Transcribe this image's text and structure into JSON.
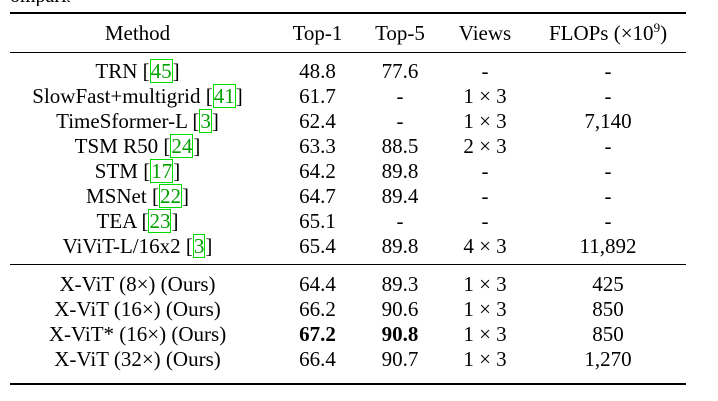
{
  "header": {
    "method": "Method",
    "top1": "Top-1",
    "top5": "Top-5",
    "views": "Views",
    "flops_base": "FLOPs (×10",
    "flops_exp": "9",
    "flops_close": ")"
  },
  "group1": [
    {
      "name": "TRN ",
      "ref": "45",
      "top1": "48.8",
      "top5": "77.6",
      "views": "-",
      "flops": "-"
    },
    {
      "name": "SlowFast+multigrid ",
      "ref": "41",
      "top1": "61.7",
      "top5": "-",
      "views": "1 × 3",
      "flops": "-"
    },
    {
      "name": "TimeSformer-L ",
      "ref": "3",
      "top1": "62.4",
      "top5": "-",
      "views": "1 × 3",
      "flops": "7,140"
    },
    {
      "name": "TSM R50 ",
      "ref": "24",
      "top1": "63.3",
      "top5": "88.5",
      "views": "2 × 3",
      "flops": "-"
    },
    {
      "name": "STM ",
      "ref": "17",
      "top1": "64.2",
      "top5": "89.8",
      "views": "-",
      "flops": "-"
    },
    {
      "name": "MSNet ",
      "ref": "22",
      "top1": "64.7",
      "top5": "89.4",
      "views": "-",
      "flops": "-"
    },
    {
      "name": "TEA ",
      "ref": "23",
      "top1": "65.1",
      "top5": "-",
      "views": "-",
      "flops": "-"
    },
    {
      "name": "ViViT-L/16x2 ",
      "ref": "3",
      "top1": "65.4",
      "top5": "89.8",
      "views": "4 × 3",
      "flops": "11,892"
    }
  ],
  "group2": [
    {
      "name": "X-ViT (8×) (Ours)",
      "top1": "64.4",
      "top5": "89.3",
      "views": "1 × 3",
      "flops": "425"
    },
    {
      "name": "X-ViT (16×) (Ours)",
      "top1": "66.2",
      "top5": "90.6",
      "views": "1 × 3",
      "flops": "850"
    },
    {
      "name": "X-ViT* (16×) (Ours)",
      "top1": "67.2",
      "top5": "90.8",
      "views": "1 × 3",
      "flops": "850"
    },
    {
      "name": "X-ViT (32×) (Ours)",
      "top1": "66.4",
      "top5": "90.7",
      "views": "1 × 3",
      "flops": "1,270"
    }
  ]
}
